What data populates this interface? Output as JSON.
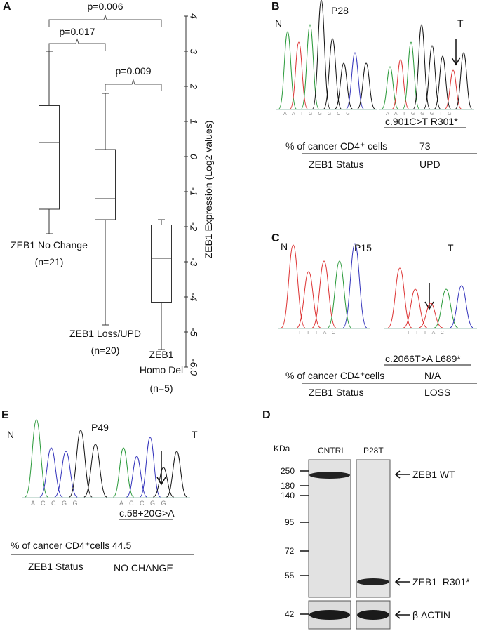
{
  "chart_data": {
    "type": "box",
    "panel_label": "A",
    "categories": [
      "ZEB1 No Change",
      "ZEB1 Loss/UPD",
      "ZEB1 Homo Del"
    ],
    "n_labels": [
      "(n=21)",
      "(n=20)",
      "(n=5)"
    ],
    "whisker_high": [
      3,
      1.8,
      -1.8
    ],
    "q3": [
      1.45,
      0.2,
      -1.95
    ],
    "median": [
      0.4,
      -1.2,
      -2.9
    ],
    "q1": [
      -1.5,
      -1.8,
      -4.15
    ],
    "whisker_low": [
      -2.2,
      -4.8,
      -5.5
    ],
    "ylabel": "ZEB1 Expression (Log2 values)",
    "ylim": [
      -6,
      4
    ],
    "yticks": [
      {
        "value": -6,
        "label": "-6.0"
      },
      -5,
      -4,
      -3,
      -2,
      -1,
      0,
      1,
      2,
      3,
      4
    ],
    "annotations": [
      "p=0.006",
      "p=0.017",
      "p=0.009"
    ],
    "color": "#333333"
  },
  "panel_b": {
    "label": "B",
    "patient": "P28",
    "normal": "N",
    "tumor": "T",
    "bases_n": "A A T G G G C G",
    "bases_t": "A A T G G G T G",
    "mutation": "c.901C>T R301*",
    "pct_label": "% of cancer CD4⁺ cells",
    "pct": "73",
    "status_label": "ZEB1 Status",
    "status": "UPD"
  },
  "panel_c": {
    "label": "C",
    "patient": "P15",
    "normal": "N",
    "tumor": "T",
    "bases_n": "T T T A C",
    "bases_t": "T T T A C",
    "mutation": "c.2066T>A L689*",
    "pct_label": "% of cancer CD4⁺cells",
    "pct": "N/A",
    "status_label": "ZEB1 Status",
    "status": "LOSS"
  },
  "panel_e": {
    "label": "E",
    "patient": "P49",
    "normal": "N",
    "tumor": "T",
    "bases_n": "A C C G G",
    "bases_t": "A C C G G",
    "mutation": "c.58+20G>A",
    "pct_label": "% of cancer CD4⁺cells",
    "pct": "44.5",
    "status_label": "ZEB1 Status",
    "status": "NO CHANGE"
  },
  "panel_d": {
    "label": "D",
    "unit": "KDa",
    "lanes": [
      "CNTRL",
      "P28T"
    ],
    "markers": [
      "250",
      "180",
      "140",
      "95",
      "72",
      "55",
      "42"
    ],
    "bands": [
      "ZEB1 WT",
      "ZEB1  R301*",
      "β ACTIN"
    ]
  }
}
